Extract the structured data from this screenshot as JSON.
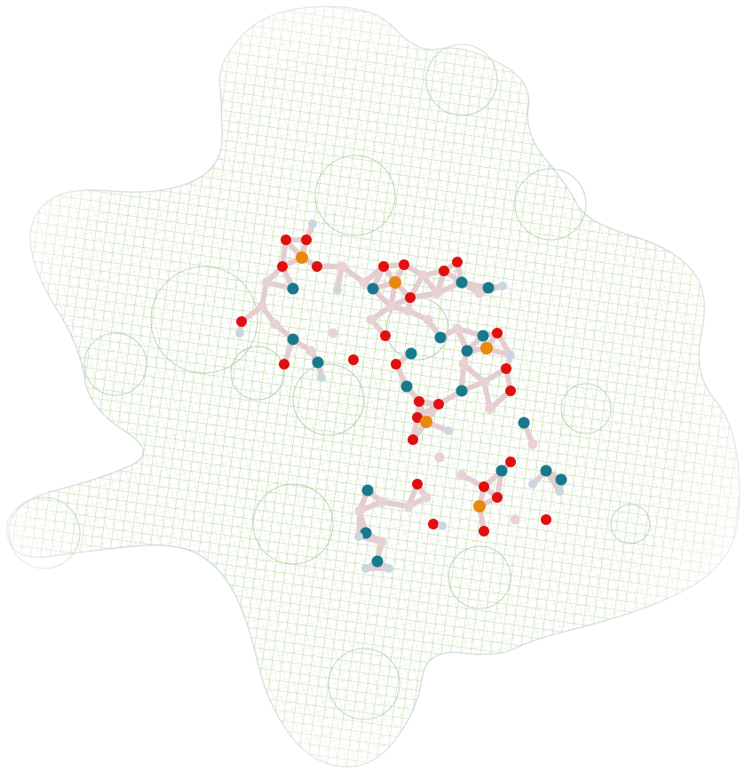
{
  "viewer": {
    "background": "#ffffff",
    "surface": {
      "style": "mesh",
      "colors": {
        "core": "#9cc46a",
        "mid": "#a9c98a",
        "edge": "#a8bfc4"
      }
    },
    "ligand": {
      "style": "ball-and-stick",
      "colors": {
        "bond": "#e3cdd0",
        "carbon": "#e8d2d4",
        "oxygen": "#e01010",
        "nitrogen": "#167a8c",
        "phosphorus": "#e8890e",
        "hydrogen": "#c9d7de"
      }
    }
  }
}
